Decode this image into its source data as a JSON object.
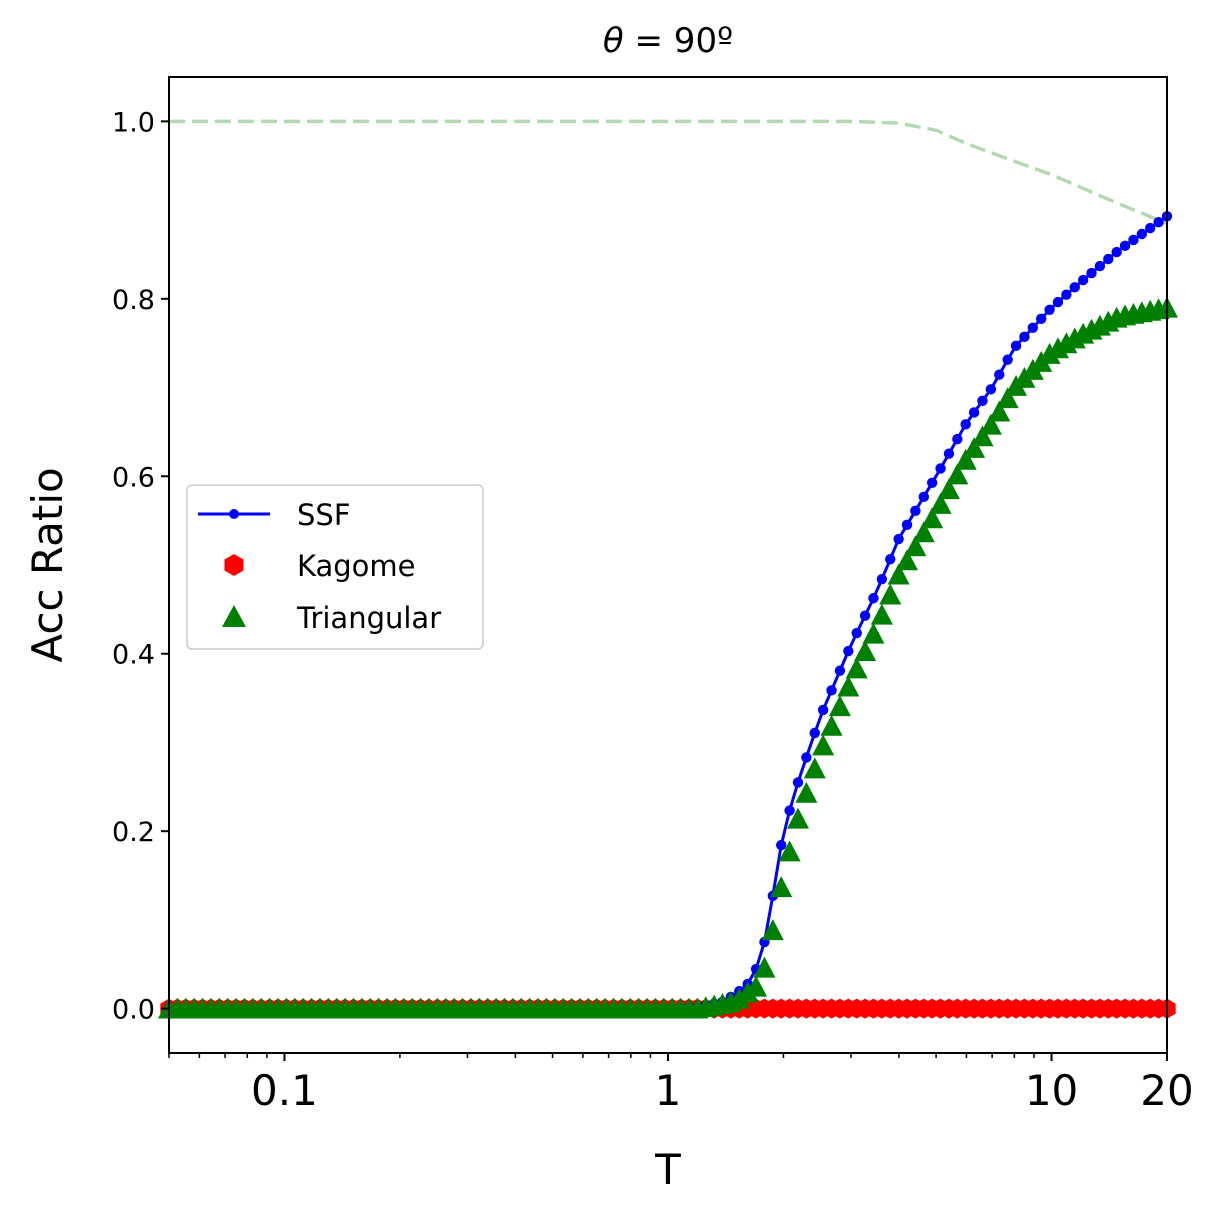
{
  "chart_data": {
    "type": "line",
    "title_prefix": "θ",
    "title_rest": " = 90º",
    "xlabel": "T",
    "ylabel": "Acc Ratio",
    "xscale": "log",
    "xlim": [
      0.05,
      20
    ],
    "ylim": [
      -0.05,
      1.05
    ],
    "x_tick_labels": [
      "0.1",
      "1",
      "10",
      "20"
    ],
    "x_ticks": [
      0.1,
      1,
      10,
      20
    ],
    "y_tick_labels": [
      "0.0",
      "0.2",
      "0.4",
      "0.6",
      "0.8",
      "1.0"
    ],
    "y_ticks": [
      0.0,
      0.2,
      0.4,
      0.6,
      0.8,
      1.0
    ],
    "legend_position": "center-left",
    "grid": false,
    "series": [
      {
        "name": "SSF",
        "style": "line-dot",
        "color": "#0000ff",
        "n_points": 120,
        "curve": [
          [
            0.05,
            0.0
          ],
          [
            1.0,
            0.0
          ],
          [
            1.2,
            0.002
          ],
          [
            1.4,
            0.008
          ],
          [
            1.6,
            0.025
          ],
          [
            1.75,
            0.055
          ],
          [
            1.9,
            0.14
          ],
          [
            2.0,
            0.2
          ],
          [
            2.2,
            0.26
          ],
          [
            2.5,
            0.33
          ],
          [
            3.0,
            0.41
          ],
          [
            3.5,
            0.47
          ],
          [
            4.0,
            0.53
          ],
          [
            5.0,
            0.6
          ],
          [
            6.0,
            0.66
          ],
          [
            7.0,
            0.7
          ],
          [
            8.0,
            0.745
          ],
          [
            10.0,
            0.79
          ],
          [
            12.0,
            0.82
          ],
          [
            15.0,
            0.855
          ],
          [
            20.0,
            0.893
          ]
        ]
      },
      {
        "name": "Kagome",
        "style": "hexagon",
        "color": "#ff0000",
        "n_points": 120,
        "curve": [
          [
            0.05,
            0.0
          ],
          [
            20.0,
            0.0
          ]
        ]
      },
      {
        "name": "Triangular",
        "style": "triangle",
        "color": "#008000",
        "n_points": 120,
        "curve": [
          [
            0.05,
            0.0
          ],
          [
            1.2,
            0.0
          ],
          [
            1.5,
            0.008
          ],
          [
            1.7,
            0.025
          ],
          [
            1.8,
            0.05
          ],
          [
            1.9,
            0.1
          ],
          [
            2.0,
            0.15
          ],
          [
            2.2,
            0.22
          ],
          [
            2.5,
            0.29
          ],
          [
            3.0,
            0.37
          ],
          [
            3.5,
            0.43
          ],
          [
            4.0,
            0.49
          ],
          [
            5.0,
            0.56
          ],
          [
            6.0,
            0.62
          ],
          [
            7.0,
            0.66
          ],
          [
            8.0,
            0.7
          ],
          [
            10.0,
            0.74
          ],
          [
            12.0,
            0.76
          ],
          [
            15.0,
            0.78
          ],
          [
            20.0,
            0.79
          ]
        ]
      },
      {
        "name": "",
        "style": "dashed",
        "color": "#b3d9b3",
        "n_points": 200,
        "curve": [
          [
            0.05,
            1.0
          ],
          [
            3.0,
            1.0
          ],
          [
            4.0,
            0.998
          ],
          [
            5.0,
            0.99
          ],
          [
            6.0,
            0.975
          ],
          [
            8.0,
            0.955
          ],
          [
            10.0,
            0.94
          ],
          [
            12.0,
            0.925
          ],
          [
            15.0,
            0.907
          ],
          [
            20.0,
            0.885
          ]
        ]
      }
    ]
  }
}
